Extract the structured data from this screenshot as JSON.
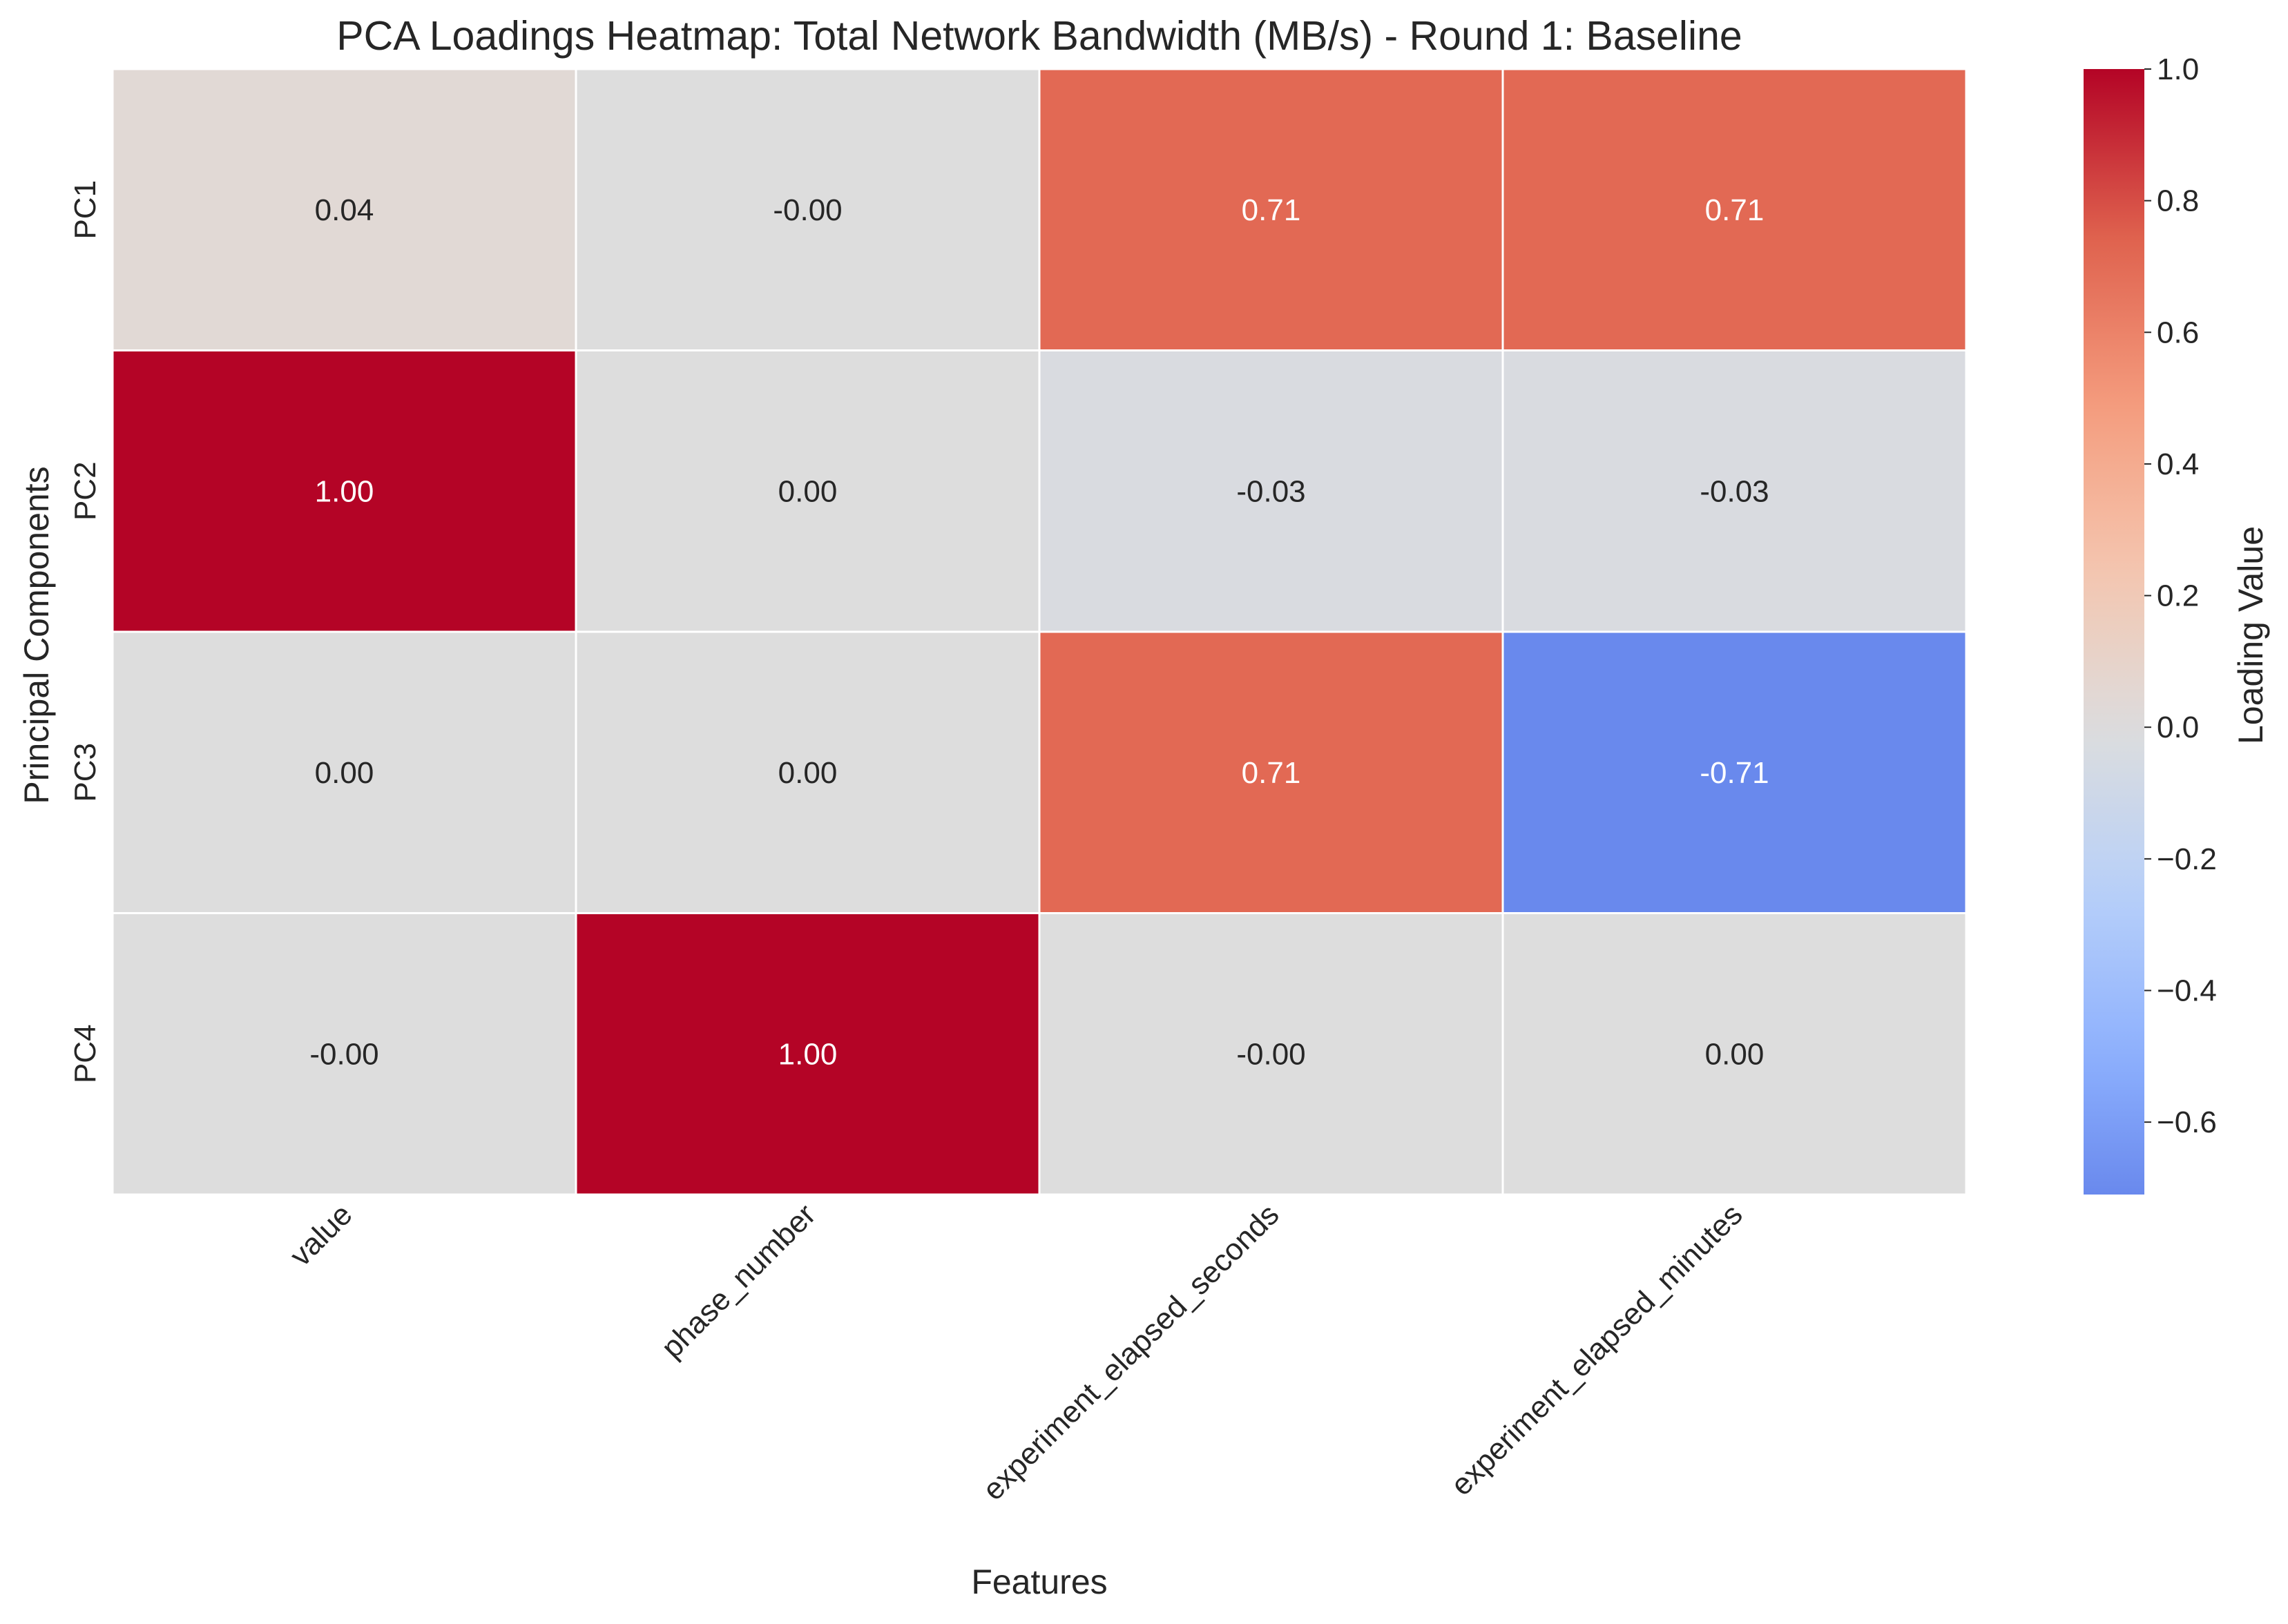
{
  "chart_data": {
    "type": "heatmap",
    "title": "PCA Loadings Heatmap: Total Network Bandwidth (MB/s) - Round 1: Baseline",
    "xlabel": "Features",
    "ylabel": "Principal Components",
    "x_categories": [
      "value",
      "phase_number",
      "experiment_elapsed_seconds",
      "experiment_elapsed_minutes"
    ],
    "y_categories": [
      "PC1",
      "PC2",
      "PC3",
      "PC4"
    ],
    "values": [
      [
        0.04,
        -0.0,
        0.71,
        0.71
      ],
      [
        1.0,
        0.0,
        -0.03,
        -0.03
      ],
      [
        0.0,
        0.0,
        0.71,
        -0.71
      ],
      [
        -0.0,
        1.0,
        -0.0,
        0.0
      ]
    ],
    "value_labels": [
      [
        "0.04",
        "-0.00",
        "0.71",
        "0.71"
      ],
      [
        "1.00",
        "0.00",
        "-0.03",
        "-0.03"
      ],
      [
        "0.00",
        "0.00",
        "0.71",
        "-0.71"
      ],
      [
        "-0.00",
        "1.00",
        "-0.00",
        "0.00"
      ]
    ],
    "colormap": "coolwarm",
    "colorbar": {
      "label": "Loading Value",
      "range": [
        -0.71,
        1.0
      ],
      "ticks": [
        1.0,
        0.8,
        0.6,
        0.4,
        0.2,
        0.0,
        -0.2,
        -0.4,
        -0.6
      ],
      "tick_labels": [
        "1.0",
        "0.8",
        "0.6",
        "0.4",
        "0.2",
        "0.0",
        "−0.2",
        "−0.4",
        "−0.6"
      ]
    },
    "grid": false,
    "colors": {
      "cell_border": "#ffffff",
      "text_dark": "#262626",
      "text_light": "#ffffff"
    }
  }
}
